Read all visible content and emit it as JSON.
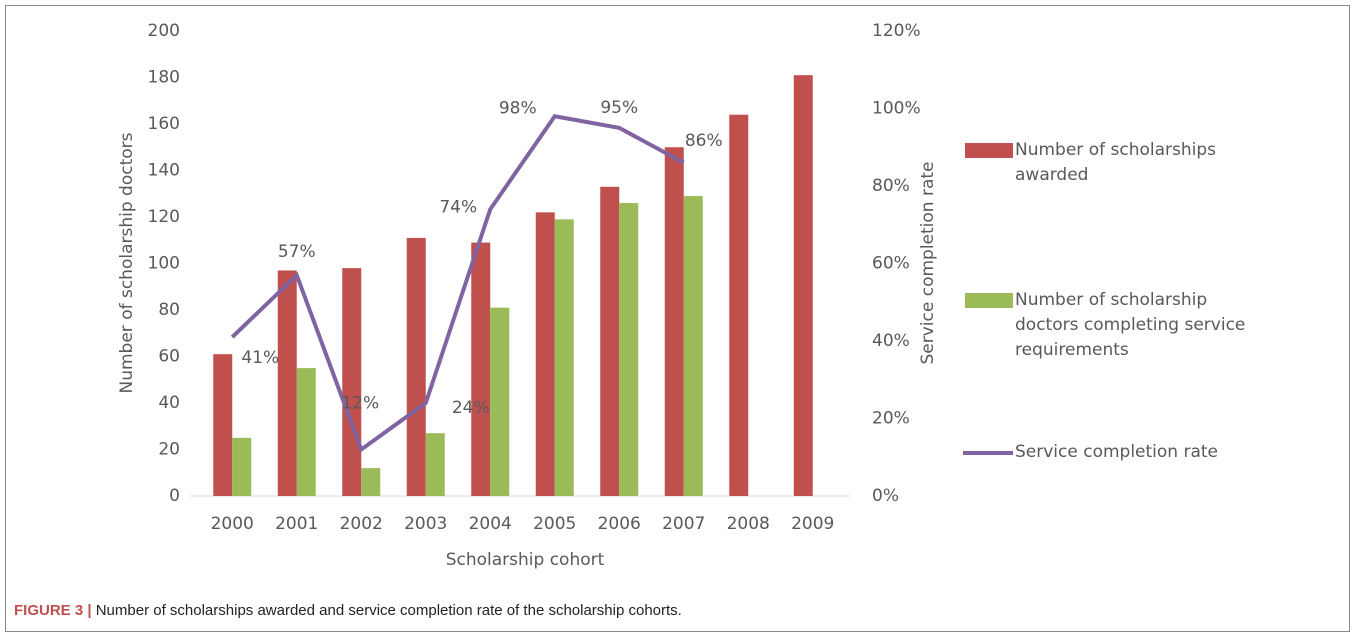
{
  "chart_data": {
    "type": "bar",
    "categories": [
      "2000",
      "2001",
      "2002",
      "2003",
      "2004",
      "2005",
      "2006",
      "2007",
      "2008",
      "2009"
    ],
    "series": [
      {
        "name": "Number of scholarships awarded",
        "color": "#c0504d",
        "values": [
          61,
          97,
          98,
          111,
          109,
          122,
          133,
          150,
          164,
          181
        ]
      },
      {
        "name": "Number of scholarship doctors completing service requirements",
        "color": "#9bbb59",
        "values": [
          25,
          55,
          12,
          27,
          81,
          119,
          126,
          129,
          null,
          null
        ]
      },
      {
        "name": "Service completion rate",
        "color": "#8064a2",
        "type": "line",
        "axis": "y2",
        "values": [
          41,
          57,
          12,
          24,
          74,
          98,
          95,
          86,
          null,
          null
        ],
        "value_labels": [
          "41%",
          "57%",
          "12%",
          "24%",
          "74%",
          "98%",
          "95%",
          "86%",
          null,
          null
        ]
      }
    ],
    "xlabel": "Scholarship cohort",
    "ylabel": "Number of scholarship doctors",
    "y2label": "Service completion rate",
    "ylim": [
      0,
      200
    ],
    "yticks": [
      0,
      20,
      40,
      60,
      80,
      100,
      120,
      140,
      160,
      180,
      200
    ],
    "y2lim": [
      0,
      120
    ],
    "y2ticks": [
      {
        "value": 0,
        "label": "0%"
      },
      {
        "value": 20,
        "label": "20%"
      },
      {
        "value": 40,
        "label": "40%"
      },
      {
        "value": 60,
        "label": "60%"
      },
      {
        "value": 80,
        "label": "80%"
      },
      {
        "value": 100,
        "label": "100%"
      },
      {
        "value": 120,
        "label": "120%"
      }
    ],
    "legend": "right",
    "caption_label": "FIGURE 3 |",
    "caption": "Number of scholarships awarded and service completion rate of the scholarship cohorts."
  }
}
